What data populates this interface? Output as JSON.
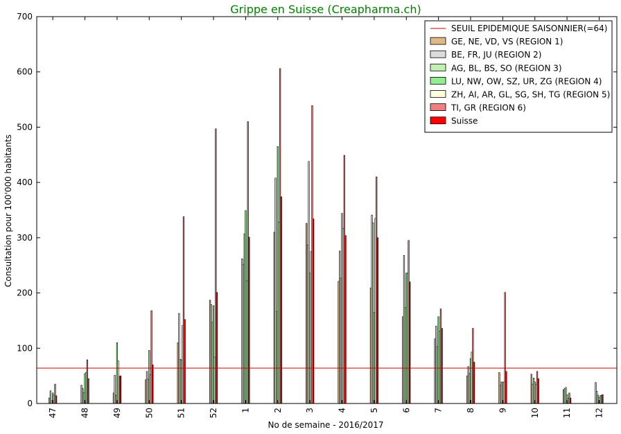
{
  "chart_data": {
    "type": "bar",
    "title": "Grippe en Suisse (Creapharma.ch)",
    "xlabel": "No de semaine - 2016/2017",
    "ylabel": "Consultation pour 100'000 habitants",
    "ylim": [
      0,
      700
    ],
    "yticks": [
      "0",
      "100",
      "200",
      "300",
      "400",
      "500",
      "600",
      "700"
    ],
    "categories": [
      "47",
      "48",
      "49",
      "50",
      "51",
      "52",
      "1",
      "2",
      "3",
      "4",
      "5",
      "6",
      "7",
      "8",
      "9",
      "10",
      "11",
      "12"
    ],
    "threshold": {
      "name": "SEUIL EPIDEMIQUE SAISONNIER(=64)",
      "value": 64,
      "color": "#cc0000"
    },
    "legend_position": "top-right",
    "grid": false,
    "title_color": "#008000",
    "series": [
      {
        "name": "GE, NE, VD, VS (REGION 1)",
        "color": "#deb887",
        "values": [
          10,
          33,
          19,
          43,
          110,
          187,
          262,
          310,
          326,
          221,
          209,
          157,
          117,
          50,
          56,
          53,
          25,
          38
        ]
      },
      {
        "name": "BE, FR, JU (REGION 2)",
        "color": "#dcdcdc",
        "values": [
          23,
          27,
          51,
          58,
          163,
          179,
          252,
          408,
          287,
          276,
          341,
          268,
          140,
          67,
          33,
          35,
          27,
          22
        ]
      },
      {
        "name": "AG, BL, BS, SO (REGION 3)",
        "color": "#c1f0b0",
        "values": [
          5,
          20,
          15,
          44,
          80,
          147,
          307,
          166,
          438,
          227,
          327,
          174,
          103,
          54,
          39,
          46,
          29,
          15
        ]
      },
      {
        "name": "LU, NW, OW, SZ, UR, ZG (REGION 4)",
        "color": "#90ee90",
        "values": [
          19,
          54,
          110,
          96,
          79,
          177,
          349,
          465,
          236,
          344,
          165,
          236,
          157,
          81,
          38,
          39,
          16,
          11
        ]
      },
      {
        "name": "ZH, AI, AR, GL, SG, SH, TG (REGION 5)",
        "color": "#ffffe0",
        "values": [
          15,
          56,
          77,
          52,
          141,
          84,
          222,
          328,
          275,
          317,
          335,
          236,
          131,
          93,
          39,
          35,
          9,
          14
        ]
      },
      {
        "name": "TI, GR (REGION 6)",
        "color": "#f08080",
        "values": [
          35,
          79,
          49,
          168,
          338,
          497,
          510,
          606,
          539,
          449,
          410,
          295,
          171,
          136,
          201,
          58,
          19,
          15
        ]
      },
      {
        "name": "Suisse",
        "color": "#ff0000",
        "values": [
          14,
          45,
          50,
          70,
          152,
          201,
          301,
          374,
          334,
          304,
          300,
          220,
          136,
          75,
          58,
          45,
          10,
          16
        ]
      }
    ]
  }
}
